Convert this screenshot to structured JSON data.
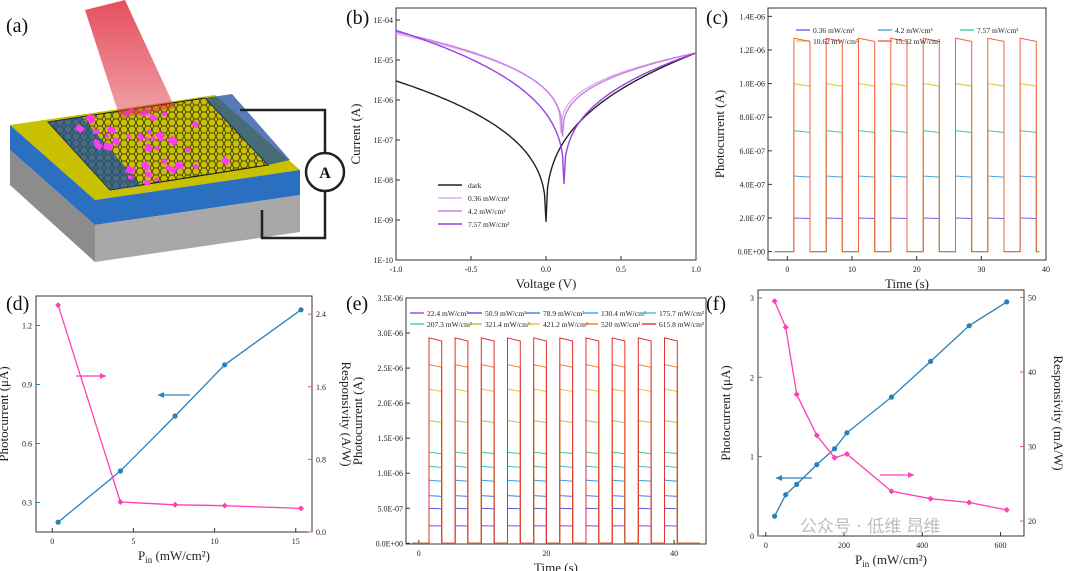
{
  "panels": {
    "a": {
      "letter": "(a)",
      "meter_label": "A"
    },
    "b": {
      "letter": "(b)"
    },
    "c": {
      "letter": "(c)"
    },
    "d": {
      "letter": "(d)"
    },
    "e": {
      "letter": "(e)"
    },
    "f": {
      "letter": "(f)"
    }
  },
  "watermark": "公众号 · 低维 昂维",
  "colors": {
    "pink": "#ff3fb4",
    "blue": "#2a80b9",
    "gold": "#c8b400",
    "blue_film": "#2a6fc0",
    "gray": "#9a9a9a",
    "particle": "#ff3df0",
    "beam": "#e03040"
  },
  "chart_data": [
    {
      "id": "b",
      "type": "line",
      "xlabel": "Voltage (V)",
      "ylabel": "Current (A)",
      "xlim": [
        -1.0,
        1.0
      ],
      "ylim_log10": [
        -10,
        -3.7
      ],
      "yscale": "log",
      "x_ticks": [
        "-1.0",
        "-0.5",
        "0.0",
        "0.5",
        "1.0"
      ],
      "y_ticks": [
        "1E-10",
        "1E-09",
        "1E-08",
        "1E-07",
        "1E-06",
        "1E-05",
        "1E-04"
      ],
      "series": [
        {
          "name": "dark",
          "color": "#222222",
          "dip_x": 0.0,
          "dip": 9e-10,
          "left": 3e-06,
          "right": 1.5e-05
        },
        {
          "name": "0.36 mW/cm²",
          "color": "#dcb2ee",
          "dip_x": 0.1,
          "dip": 1.5e-07,
          "left": 4.5e-05,
          "right": 1.5e-05
        },
        {
          "name": "4.2  mW/cm²",
          "color": "#c77ee8",
          "dip_x": 0.11,
          "dip": 1.2e-07,
          "left": 5e-05,
          "right": 1.5e-05
        },
        {
          "name": "7.57 mW/cm²",
          "color": "#9a40e0",
          "dip_x": 0.12,
          "dip": 8e-09,
          "left": 5.5e-05,
          "right": 1.5e-05
        }
      ]
    },
    {
      "id": "c",
      "type": "line",
      "xlabel": "Time (s)",
      "ylabel": "Photocurrent (A)",
      "xlim": [
        -3,
        40
      ],
      "ylim": [
        -5e-08,
        1.45e-06
      ],
      "x_ticks": [
        "0",
        "10",
        "20",
        "30",
        "40"
      ],
      "y_ticks": [
        "0.0E+00",
        "2.0E-07",
        "4.0E-07",
        "6.0E-07",
        "8.0E-07",
        "1.0E-06",
        "1.2E-06",
        "1.4E-06"
      ],
      "period": 5,
      "on_start": 1,
      "on_duration": 2.5,
      "cycles": 8,
      "series": [
        {
          "name": "0.36 mW/cm²",
          "color": "#7a5ce8",
          "value": 2e-07
        },
        {
          "name": "4.2 mW/cm²",
          "color": "#4aa0e0",
          "value": 4.5e-07
        },
        {
          "name": "7.57 mW/cm²",
          "color": "#40d0a0",
          "value": 7.2e-07
        },
        {
          "name": "10.62 mW/cm²",
          "color": "#f0c030",
          "value": 1e-06
        },
        {
          "name": "15.32 mW/cm²",
          "color": "#f06040",
          "value": 1.27e-06
        }
      ]
    },
    {
      "id": "d",
      "type": "line",
      "xlabel": "P",
      "xlabel_sub": "in",
      "xlabel_unit": " (mW/cm²)",
      "ylabel_left": "Photocurrent (μA)",
      "ylabel_right": "Responsivity (A/W)",
      "xlim": [
        -1,
        16
      ],
      "ylim_left": [
        0.15,
        1.35
      ],
      "ylim_right": [
        0.0,
        2.6
      ],
      "x_ticks": [
        0,
        5,
        10,
        15
      ],
      "y_ticks_left": [
        "0.3",
        "0.6",
        "0.9",
        "1.2"
      ],
      "y_ticks_right": [
        "0.0",
        "0.8",
        "1.6",
        "2.4"
      ],
      "series": [
        {
          "name": "Photocurrent",
          "axis": "left",
          "color": "#2a80b9",
          "x": [
            0.36,
            4.2,
            7.57,
            10.62,
            15.32
          ],
          "y": [
            0.2,
            0.46,
            0.74,
            1.0,
            1.28
          ]
        },
        {
          "name": "Responsivity",
          "axis": "right",
          "color": "#ff3fb4",
          "x": [
            0.36,
            4.2,
            7.57,
            10.62,
            15.32
          ],
          "y": [
            2.5,
            0.33,
            0.3,
            0.29,
            0.26
          ]
        }
      ]
    },
    {
      "id": "e",
      "type": "line",
      "xlabel": "Time (s)",
      "ylabel": "Photocurrent (A)",
      "xlim": [
        -2,
        45
      ],
      "ylim": [
        -1e-08,
        3.5e-06
      ],
      "x_ticks": [
        "0",
        "20",
        "40"
      ],
      "y_ticks": [
        "0.0E+00",
        "5.0E-07",
        "1.0E-06",
        "1.5E-06",
        "2.0E-06",
        "2.5E-06",
        "3.0E-06",
        "3.5E-06"
      ],
      "period": 4.1,
      "on_start": 1.6,
      "on_duration": 2.0,
      "cycles": 10,
      "series": [
        {
          "name": "22.4 mW/cm²",
          "color": "#a040e0",
          "value": 2.5e-07
        },
        {
          "name": "50.9 mW/cm²",
          "color": "#5050e0",
          "value": 5e-07
        },
        {
          "name": "78.9 mW/cm²",
          "color": "#4080e0",
          "value": 6.8e-07
        },
        {
          "name": "130.4 mW/cm²",
          "color": "#40a0e0",
          "value": 9e-07
        },
        {
          "name": "175.7 mW/cm²",
          "color": "#40c0c0",
          "value": 1.1e-06
        },
        {
          "name": "207.3 mW/cm²",
          "color": "#40d090",
          "value": 1.3e-06
        },
        {
          "name": "321.4 mW/cm²",
          "color": "#a0d040",
          "value": 1.75e-06
        },
        {
          "name": "421.2 mW/cm²",
          "color": "#f0c030",
          "value": 2.2e-06
        },
        {
          "name": "520 mW/cm²",
          "color": "#f08030",
          "value": 2.55e-06
        },
        {
          "name": "615.8 mW/cm²",
          "color": "#e03030",
          "value": 2.93e-06
        }
      ]
    },
    {
      "id": "f",
      "type": "line",
      "xlabel": "P",
      "xlabel_sub": "in",
      "xlabel_unit": " (mW/cm²)",
      "ylabel_left": "Photocurrent (μA)",
      "ylabel_right": "Responsivity (mA/W)",
      "xlim": [
        -20,
        660
      ],
      "ylim_left": [
        0,
        3.1
      ],
      "ylim_right": [
        18,
        51
      ],
      "x_ticks": [
        0,
        200,
        400,
        600
      ],
      "y_ticks_left": [
        "0",
        "1",
        "2",
        "3"
      ],
      "y_ticks_right": [
        "20",
        "30",
        "40",
        "50"
      ],
      "series": [
        {
          "name": "Photocurrent",
          "axis": "left",
          "color": "#2a80b9",
          "x": [
            22.4,
            50.9,
            78.9,
            130.4,
            175.7,
            207.3,
            321.4,
            421.2,
            520,
            615.8
          ],
          "y": [
            0.25,
            0.52,
            0.65,
            0.9,
            1.1,
            1.3,
            1.75,
            2.2,
            2.65,
            2.95
          ]
        },
        {
          "name": "Responsivity",
          "axis": "right",
          "color": "#ff3fb4",
          "x": [
            22.4,
            50.9,
            78.9,
            130.4,
            175.7,
            207.3,
            321.4,
            421.2,
            520,
            615.8
          ],
          "y": [
            49.5,
            46,
            37,
            31.5,
            28.5,
            29,
            24,
            23,
            22.5,
            21.5
          ]
        }
      ]
    }
  ]
}
